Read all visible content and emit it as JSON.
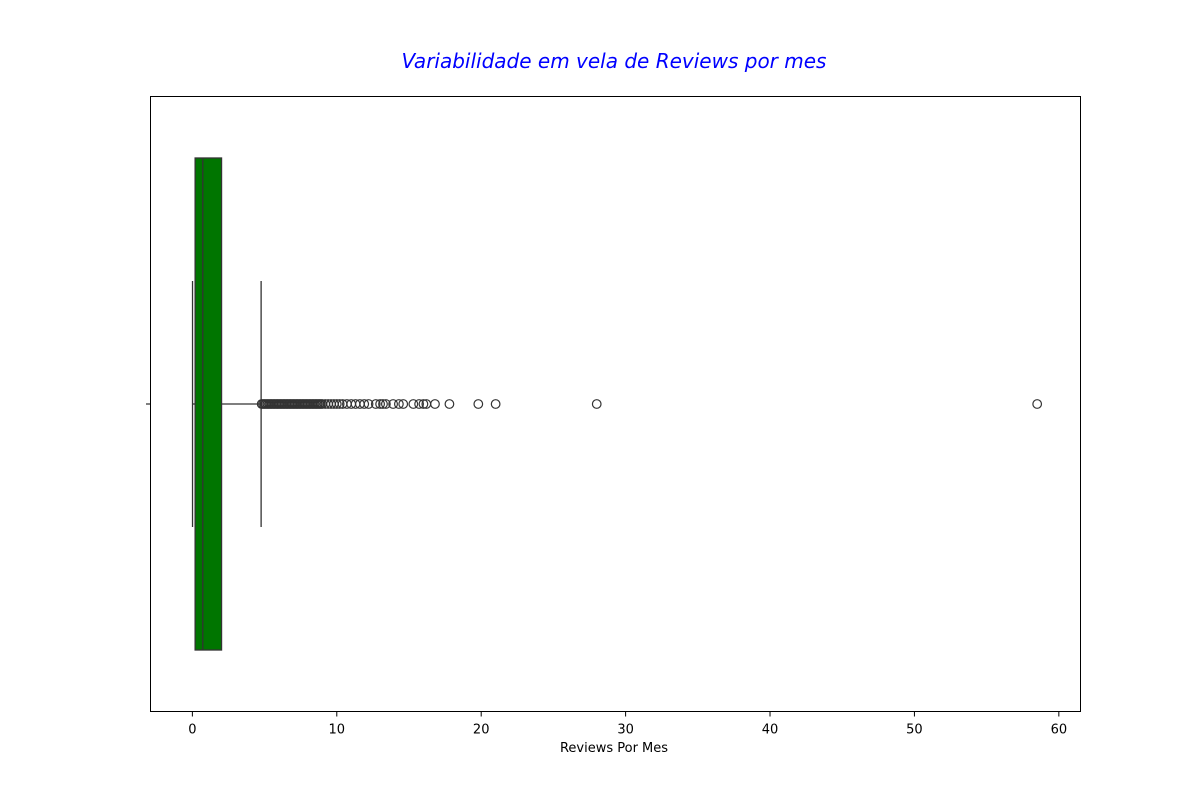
{
  "chart_data": {
    "type": "boxplot",
    "title": "Variabilidade em vela de Reviews por mes",
    "title_color": "#0000ff",
    "xlabel": "Reviews Por Mes",
    "ylabel": "",
    "xlim": [
      -2.9,
      61.5
    ],
    "xticks": [
      0,
      10,
      20,
      30,
      40,
      50,
      60
    ],
    "xtick_labels": [
      "0",
      "10",
      "20",
      "30",
      "40",
      "50",
      "60"
    ],
    "grid": false,
    "box_color": "#007500",
    "box": {
      "q1": 0.19,
      "median": 0.72,
      "q3": 2.02,
      "whisker_low": 0.01,
      "whisker_high": 4.76
    },
    "outliers": [
      4.8,
      4.9,
      5.0,
      5.1,
      5.2,
      5.3,
      5.4,
      5.5,
      5.6,
      5.7,
      5.8,
      5.9,
      6.0,
      6.1,
      6.2,
      6.3,
      6.4,
      6.5,
      6.6,
      6.7,
      6.8,
      6.9,
      7.0,
      7.1,
      7.2,
      7.3,
      7.4,
      7.5,
      7.6,
      7.7,
      7.8,
      7.9,
      8.0,
      8.1,
      8.2,
      8.3,
      8.4,
      8.5,
      8.6,
      8.7,
      8.8,
      8.9,
      9.0,
      9.2,
      9.4,
      9.6,
      9.8,
      10.0,
      10.2,
      10.4,
      10.7,
      11.0,
      11.3,
      11.6,
      11.9,
      12.2,
      12.7,
      13.0,
      13.2,
      13.4,
      13.9,
      14.3,
      14.6,
      15.3,
      15.7,
      16.0,
      16.2,
      16.8,
      17.8,
      19.8,
      21.0,
      28.0,
      58.5
    ]
  }
}
